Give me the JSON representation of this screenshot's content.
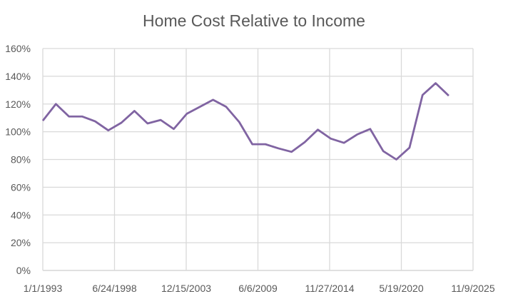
{
  "chart_data": {
    "type": "line",
    "title": "Home Cost Relative to Income",
    "xlabel": "",
    "ylabel": "",
    "x": [
      "1993",
      "1994",
      "1995",
      "1996",
      "1997",
      "1998",
      "1999",
      "2000",
      "2001",
      "2002",
      "2003",
      "2004",
      "2005",
      "2006",
      "2007",
      "2008",
      "2009",
      "2010",
      "2011",
      "2012",
      "2013",
      "2014",
      "2015",
      "2016",
      "2017",
      "2018",
      "2019",
      "2020",
      "2021",
      "2022",
      "2023",
      "2024"
    ],
    "series": [
      {
        "values": [
          108,
          120,
          111,
          111,
          107.5,
          101,
          106.5,
          115,
          106,
          108.5,
          102,
          113,
          118,
          123,
          118,
          107,
          91,
          91,
          88,
          85.5,
          92.5,
          101.5,
          95,
          92,
          98,
          102,
          86,
          80,
          88.5,
          126.5,
          135,
          126
        ]
      }
    ],
    "x_tick_labels": [
      "1/1/1993",
      "6/24/1998",
      "12/15/2003",
      "6/6/2009",
      "11/27/2014",
      "5/19/2020",
      "11/9/2025"
    ],
    "y_tick_labels": [
      "0%",
      "20%",
      "40%",
      "60%",
      "80%",
      "100%",
      "120%",
      "140%",
      "160%"
    ],
    "ylim": [
      0,
      160
    ],
    "xlim": [
      "1/1/1993",
      "11/9/2025"
    ],
    "grid": true,
    "legend": "none",
    "line_color": "#8064a2"
  }
}
